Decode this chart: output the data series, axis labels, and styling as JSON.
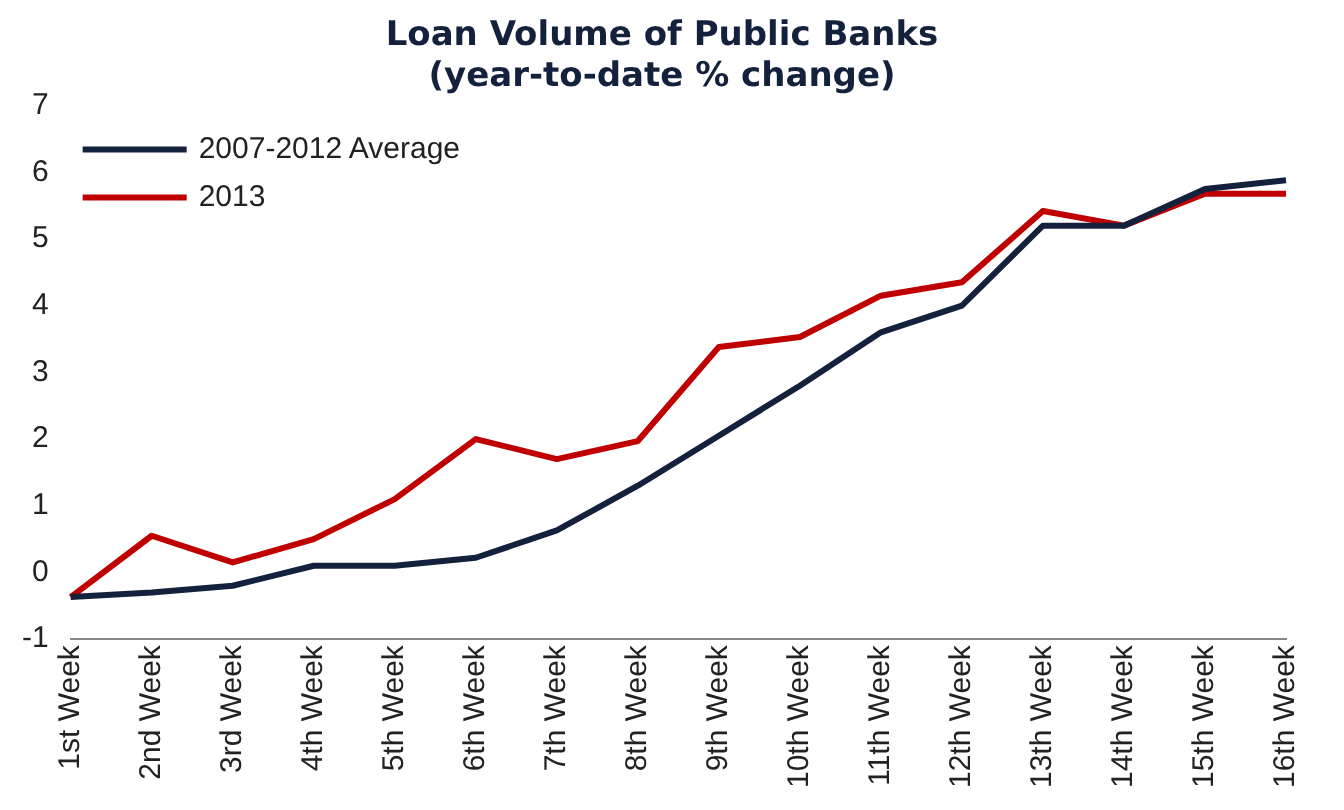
{
  "chart_data": {
    "type": "line",
    "title": "Loan Volume of Public Banks\n(year-to-date % change)",
    "categories": [
      "1st Week",
      "2nd Week",
      "3rd Week",
      "4th Week",
      "5th Week",
      "6th Week",
      "7th Week",
      "8th Week",
      "9th Week",
      "10th Week",
      "11th Week",
      "12th Week",
      "13th Week",
      "14th Week",
      "15th Week",
      "16th Week"
    ],
    "series": [
      {
        "name": "2007-2012 Average",
        "color": "#14213d",
        "values": [
          -0.37,
          -0.3,
          -0.2,
          0.1,
          0.1,
          0.22,
          0.63,
          1.3,
          2.05,
          2.8,
          3.6,
          4.0,
          5.2,
          5.2,
          5.75,
          5.88
        ]
      },
      {
        "name": "2013",
        "color": "#c00000",
        "values": [
          -0.37,
          0.55,
          0.15,
          0.5,
          1.1,
          2.0,
          1.7,
          1.97,
          3.38,
          3.53,
          4.15,
          4.35,
          5.42,
          5.2,
          5.68,
          5.68
        ]
      }
    ],
    "ylim": [
      -1,
      7
    ],
    "yticks": [
      -1,
      0,
      1,
      2,
      3,
      4,
      5,
      6,
      7
    ],
    "grid": false,
    "legend": "top left",
    "marker": "none",
    "line_style": "solid"
  }
}
